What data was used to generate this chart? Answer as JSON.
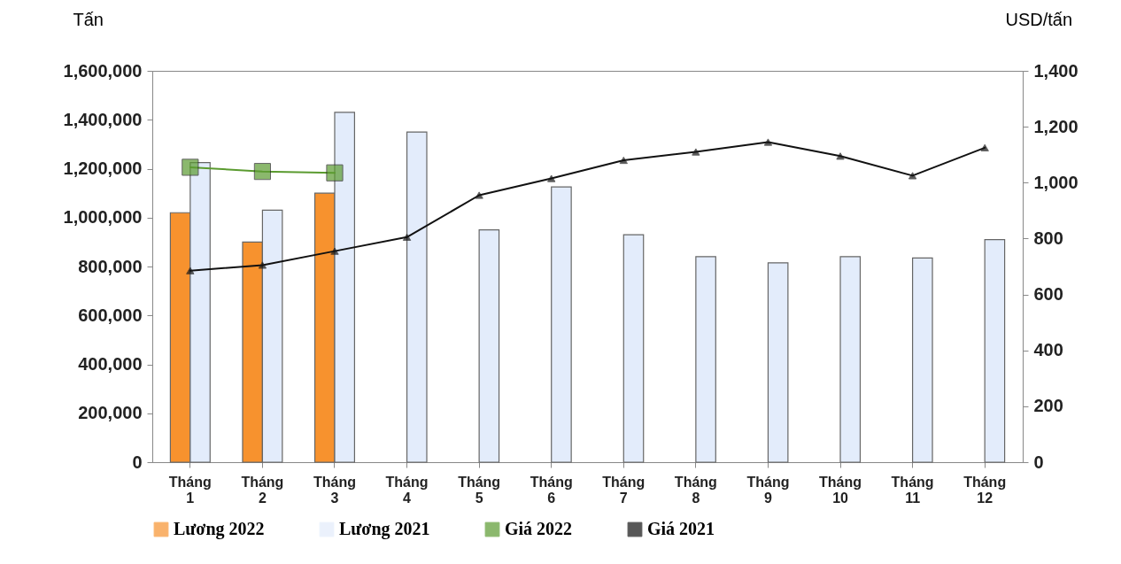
{
  "chart_data": {
    "type": "bar",
    "categories": [
      "Tháng 1",
      "Tháng 2",
      "Tháng 3",
      "Tháng 4",
      "Tháng 5",
      "Tháng 6",
      "Tháng 7",
      "Tháng 8",
      "Tháng 9",
      "Tháng 10",
      "Tháng 11",
      "Tháng 12"
    ],
    "ylabel": "Tấn",
    "y2label": "USD/tấn",
    "ylim": [
      0,
      1600000
    ],
    "yticks": [
      0,
      {
        "value": 200000,
        "label": "200,000"
      },
      {
        "value": 400000,
        "label": "400,000"
      },
      {
        "value": 600000,
        "label": "600,000"
      },
      {
        "value": 800000,
        "label": "800,000"
      },
      {
        "value": 1000000,
        "label": "1,000,000"
      },
      {
        "value": 1200000,
        "label": "1,200,000"
      },
      {
        "value": 1400000,
        "label": "1,400,000"
      },
      {
        "value": 1600000,
        "label": "1,600,000"
      }
    ],
    "y2lim": [
      0,
      1400
    ],
    "y2ticks": [
      0,
      200,
      400,
      600,
      800,
      {
        "value": 1000,
        "label": "1,000"
      },
      {
        "value": 1200,
        "label": "1,200"
      },
      {
        "value": 1400,
        "label": "1,400"
      }
    ],
    "series": [
      {
        "name": "Lương 2022",
        "color": "#f7922e",
        "values": [
          1020000,
          900000,
          1100000,
          null,
          null,
          null,
          null,
          null,
          null,
          null,
          null,
          null
        ]
      },
      {
        "name": "Lương 2021",
        "color": "#e3ecfb",
        "values": [
          1225000,
          1030000,
          1430000,
          1350000,
          950000,
          1125000,
          930000,
          840000,
          815000,
          840000,
          835000,
          910000
        ]
      },
      {
        "name": "Giá 2022",
        "type": "line",
        "axis": "y2",
        "marker": "square",
        "color": "#5b9b30",
        "values": [
          1055,
          1040,
          1035,
          null,
          null,
          null,
          null,
          null,
          null,
          null,
          null,
          null
        ]
      },
      {
        "name": "Giá 2021",
        "type": "line",
        "axis": "y2",
        "marker": "triangle",
        "color": "#111111",
        "values": [
          685,
          705,
          755,
          805,
          955,
          1015,
          1080,
          1110,
          1145,
          1095,
          1025,
          1125
        ]
      }
    ],
    "legend": "bottom",
    "grid": false
  }
}
